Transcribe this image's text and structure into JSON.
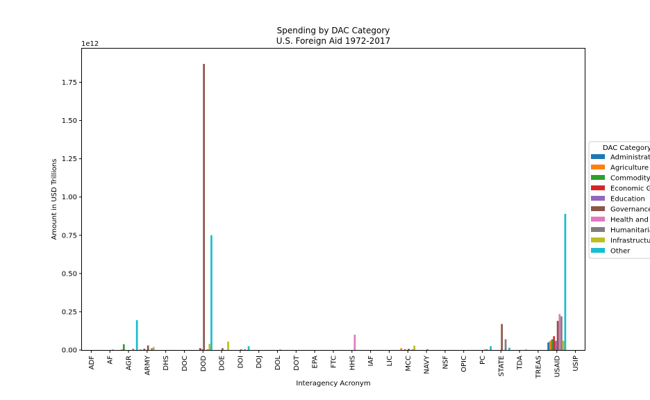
{
  "chart_data": {
    "type": "bar",
    "title": "Spending by DAC Category",
    "subtitle": "U.S. Foreign Aid 1972-2017",
    "xlabel": "Interagency Acronym",
    "ylabel": "Amount in USD Trillions",
    "offset_label": "1e12",
    "ylim": [
      0,
      1.8
    ],
    "yticks": [
      "0.00",
      "0.25",
      "0.50",
      "0.75",
      "1.00",
      "1.25",
      "1.50",
      "1.75"
    ],
    "grid": false,
    "legend": {
      "title": "DAC Category",
      "placement": "right",
      "entries": [
        "Administrat",
        "Agriculture",
        "Commodity",
        "Economic G",
        "Education",
        "Governance",
        "Health and",
        "Humanitaria",
        "Infrastructu",
        "Other"
      ]
    },
    "colors": [
      "#1f77b4",
      "#ff7f0e",
      "#2ca02c",
      "#d62728",
      "#9467bd",
      "#8c564b",
      "#e377c2",
      "#7f7f7f",
      "#bcbd22",
      "#17becf"
    ],
    "categories": [
      "ADF",
      "AF",
      "AGR",
      "ARMY",
      "DHS",
      "DOC",
      "DOD",
      "DOE",
      "DOI",
      "DOJ",
      "DOL",
      "DOT",
      "EPA",
      "FTC",
      "HHS",
      "IAF",
      "LIC",
      "MCC",
      "NAVY",
      "NSF",
      "OPIC",
      "PC",
      "STATE",
      "TDA",
      "TREAS",
      "USAID",
      "USIP"
    ],
    "series": [
      {
        "name": "Administrat",
        "values": [
          0,
          0,
          0,
          0,
          0,
          0,
          0,
          0,
          0,
          0,
          0,
          0,
          0,
          0,
          0,
          0,
          0,
          0,
          0,
          0,
          0,
          0,
          0,
          0,
          0,
          0.05,
          0
        ]
      },
      {
        "name": "Agriculture",
        "values": [
          0,
          0,
          0.004,
          0.004,
          0,
          0,
          0,
          0,
          0,
          0,
          0,
          0,
          0,
          0,
          0,
          0,
          0,
          0.012,
          0,
          0,
          0,
          0,
          0,
          0,
          0,
          0.06,
          0
        ]
      },
      {
        "name": "Commodity",
        "values": [
          0,
          0,
          0.038,
          0,
          0,
          0,
          0,
          0,
          0,
          0,
          0,
          0,
          0,
          0,
          0,
          0,
          0,
          0,
          0,
          0,
          0,
          0,
          0,
          0,
          0,
          0.07,
          0
        ]
      },
      {
        "name": "Economic G",
        "values": [
          0,
          0,
          0,
          0.008,
          0,
          0,
          0.012,
          0,
          0,
          0,
          0,
          0,
          0,
          0,
          0,
          0,
          0,
          0.004,
          0,
          0,
          0,
          0,
          0,
          0,
          0,
          0.09,
          0
        ]
      },
      {
        "name": "Education",
        "values": [
          0,
          0,
          0,
          0,
          0,
          0,
          0.004,
          0,
          0,
          0,
          0,
          0,
          0,
          0,
          0,
          0,
          0,
          0,
          0,
          0,
          0,
          0,
          0,
          0,
          0,
          0.06,
          0
        ]
      },
      {
        "name": "Governance",
        "values": [
          0,
          0,
          0,
          0.03,
          0,
          0,
          1.87,
          0.012,
          0.004,
          0,
          0,
          0,
          0,
          0,
          0,
          0,
          0,
          0.008,
          0.004,
          0,
          0,
          0,
          0.17,
          0,
          0,
          0.19,
          0
        ]
      },
      {
        "name": "Health and",
        "values": [
          0,
          0.004,
          0,
          0,
          0,
          0,
          0,
          0,
          0,
          0,
          0.004,
          0,
          0,
          0,
          0.1,
          0,
          0,
          0,
          0,
          0,
          0,
          0.004,
          0,
          0,
          0,
          0.235,
          0
        ]
      },
      {
        "name": "Humanitaria",
        "values": [
          0,
          0,
          0.008,
          0.012,
          0,
          0,
          0.004,
          0,
          0.004,
          0,
          0,
          0,
          0,
          0,
          0,
          0,
          0,
          0.004,
          0,
          0,
          0,
          0.004,
          0.07,
          0,
          0,
          0.22,
          0
        ]
      },
      {
        "name": "Infrastructu",
        "values": [
          0,
          0,
          0,
          0.02,
          0,
          0,
          0.04,
          0.055,
          0,
          0,
          0,
          0,
          0,
          0,
          0,
          0,
          0,
          0.028,
          0,
          0,
          0,
          0,
          0,
          0.004,
          0,
          0.06,
          0
        ]
      },
      {
        "name": "Other",
        "values": [
          0,
          0,
          0.195,
          0,
          0,
          0,
          0.75,
          0,
          0.025,
          0,
          0,
          0,
          0,
          0,
          0,
          0,
          0,
          0,
          0,
          0,
          0,
          0.025,
          0.015,
          0,
          0,
          0.89,
          0
        ]
      }
    ]
  }
}
